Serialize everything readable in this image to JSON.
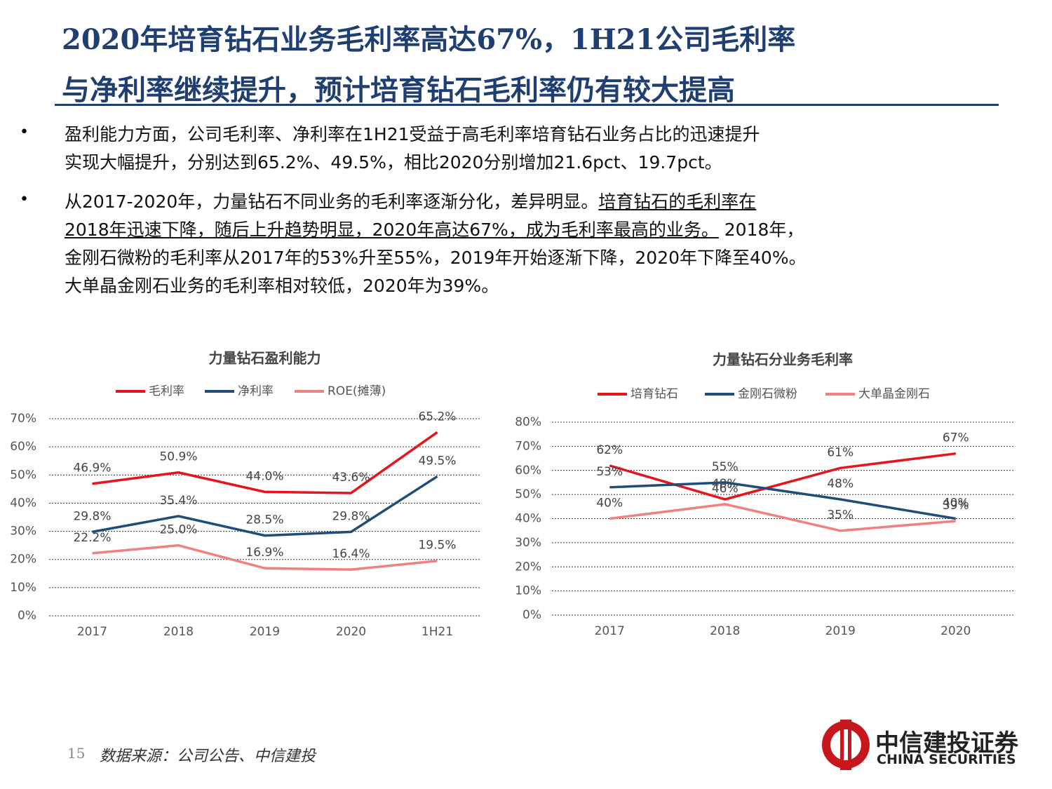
{
  "header": {
    "title_lines": [
      "2020年培育钻石业务毛利率高达67%，1H21公司毛利率",
      "与净利率继续提升，预计培育钻石毛利率仍有较大提高"
    ]
  },
  "bullets": [
    [
      "盈利能力方面，公司毛利率、净利率在1H21受益于高毛利率培育钻石业务占比的迅速提升",
      "实现大幅提升，分别达到65.2%、49.5%，相比2020分别增加21.6pct、19.7pct。"
    ],
    [
      "从2017-2020年，力量钻石不同业务的毛利率逐渐分化，差异明显。",
      "培育钻石的毛利率在",
      "2018年迅速下降，随后上升趋势明显，2020年高达67%，成为毛利率最高的业务。",
      " 2018年，",
      "金刚石微粉的毛利率从2017年的53%升至55%，2019年开始逐渐下降，2020年下降至40%。",
      "大单晶金刚石业务的毛利率相对较低，2020年为39%。"
    ]
  ],
  "footer": {
    "page": "15",
    "source": "数据来源：公司公告、中信建投",
    "logo_cn": "中信建投证券",
    "logo_en": "CHINA SECURITIES"
  },
  "chart_data": [
    {
      "type": "line",
      "title": "力量钻石盈利能力",
      "categories": [
        "2017",
        "2018",
        "2019",
        "2020",
        "1H21"
      ],
      "series": [
        {
          "name": "毛利率",
          "color": "#e8141b",
          "values": [
            46.9,
            50.9,
            44.0,
            43.6,
            65.2
          ],
          "value_labels": [
            "46.9%",
            "50.9%",
            "44.0%",
            "43.6%",
            "65.2%"
          ]
        },
        {
          "name": "净利率",
          "color": "#1f4e79",
          "values": [
            29.8,
            35.4,
            28.5,
            29.8,
            49.5
          ],
          "value_labels": [
            "29.8%",
            "35.4%",
            "28.5%",
            "29.8%",
            "49.5%"
          ]
        },
        {
          "name": "ROE(摊薄)",
          "color": "#f28080",
          "values": [
            22.2,
            25.0,
            16.9,
            16.4,
            19.5
          ],
          "value_labels": [
            "22.2%",
            "25.0%",
            "16.9%",
            "16.4%",
            "19.5%"
          ]
        }
      ],
      "ylim": [
        0,
        70
      ],
      "yticks": [
        {
          "value": 0,
          "label": "0%"
        },
        {
          "value": 10,
          "label": "10%"
        },
        {
          "value": 20,
          "label": "20%"
        },
        {
          "value": 30,
          "label": "30%"
        },
        {
          "value": 40,
          "label": "40%"
        },
        {
          "value": 50,
          "label": "50%"
        },
        {
          "value": 60,
          "label": "60%"
        },
        {
          "value": 70,
          "label": "70%"
        }
      ],
      "grid": true
    },
    {
      "type": "line",
      "title": "力量钻石分业务毛利率",
      "categories": [
        "2017",
        "2018",
        "2019",
        "2020"
      ],
      "series": [
        {
          "name": "培育钻石",
          "color": "#e8141b",
          "values": [
            62,
            48,
            61,
            67
          ],
          "value_labels": [
            "62%",
            "48%",
            "61%",
            "67%"
          ]
        },
        {
          "name": "金刚石微粉",
          "color": "#1f4e79",
          "values": [
            53,
            55,
            48,
            40
          ],
          "value_labels": [
            "53%",
            "55%",
            "48%",
            "40%"
          ]
        },
        {
          "name": "大单晶金刚石",
          "color": "#f28080",
          "values": [
            40,
            46,
            35,
            39
          ],
          "value_labels": [
            "40%",
            "46%",
            "35%",
            "39%"
          ]
        }
      ],
      "ylim": [
        0,
        80
      ],
      "yticks": [
        {
          "value": 0,
          "label": "0%"
        },
        {
          "value": 10,
          "label": "10%"
        },
        {
          "value": 20,
          "label": "20%"
        },
        {
          "value": 30,
          "label": "30%"
        },
        {
          "value": 40,
          "label": "40%"
        },
        {
          "value": 50,
          "label": "50%"
        },
        {
          "value": 60,
          "label": "60%"
        },
        {
          "value": 70,
          "label": "70%"
        },
        {
          "value": 80,
          "label": "80%"
        }
      ],
      "grid": true
    }
  ]
}
